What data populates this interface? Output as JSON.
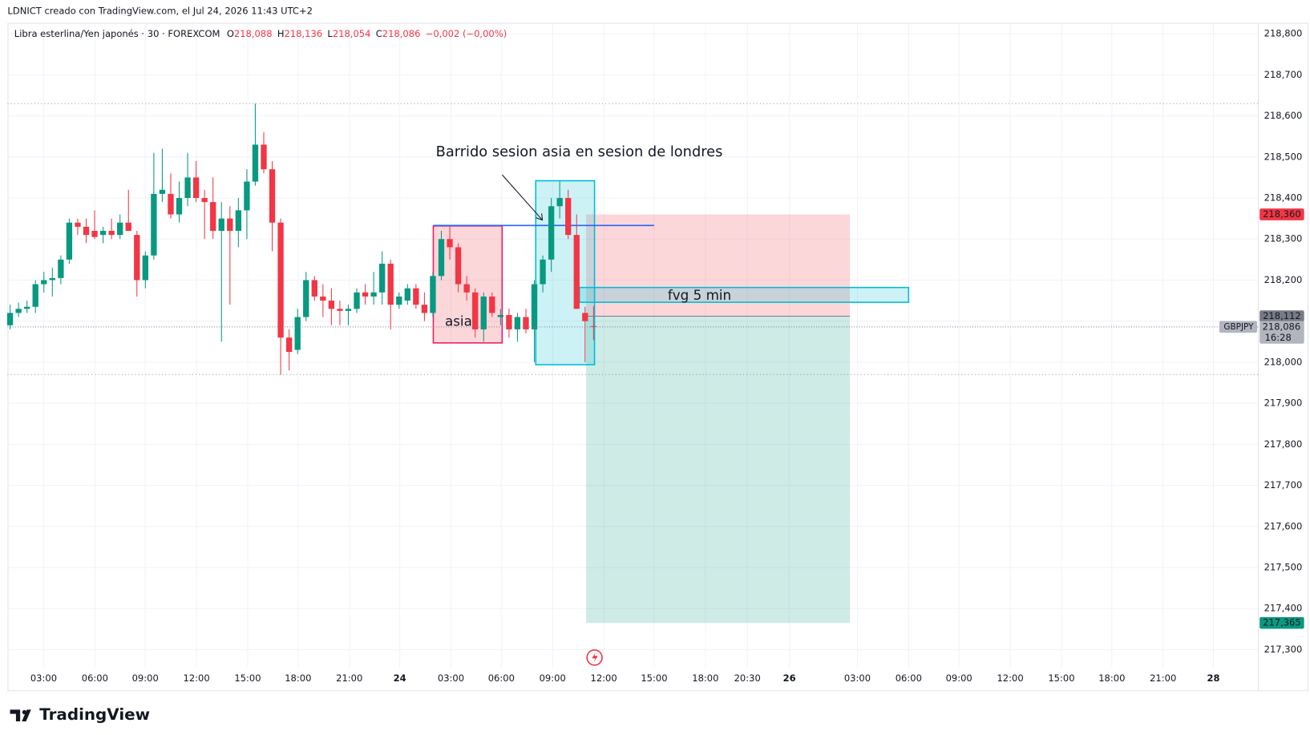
{
  "chart_data": {
    "type": "candlestick",
    "caption": "LDNICT creado con TradingView.com, el Jul 24, 2026 11:43 UTC+2",
    "symbol": "Libra esterlina/Yen japonés · 30 · FOREXCOM",
    "ohlc_legend": [
      {
        "k": "O",
        "v": "218,088"
      },
      {
        "k": "H",
        "v": "218,136"
      },
      {
        "k": "L",
        "v": "218,054"
      },
      {
        "k": "C",
        "v": "218,086"
      }
    ],
    "change": "−0,002 (−0,00%)",
    "up_color": "#089981",
    "down_color": "#f23645",
    "categories": [
      "03:00",
      "06:00",
      "09:00",
      "12:00",
      "15:00",
      "18:00",
      "21:00",
      "24",
      "03:00",
      "06:00",
      "09:00",
      "12:00",
      "15:00",
      "18:00",
      "20:30",
      "26",
      "03:00",
      "06:00",
      "09:00",
      "12:00",
      "15:00",
      "18:00",
      "21:00",
      "28"
    ],
    "ylim": [
      218.8,
      217.3
    ],
    "yticks": [
      {
        "value": 218.8,
        "label": "218,800"
      },
      {
        "value": 218.7,
        "label": "218,700"
      },
      {
        "value": 218.6,
        "label": "218,600"
      },
      {
        "value": 218.5,
        "label": "218,500"
      },
      {
        "value": 218.4,
        "label": "218,400"
      },
      {
        "value": 218.3,
        "label": "218,300"
      },
      {
        "value": 218.2,
        "label": "218,200"
      },
      {
        "value": 218.1,
        "label": "218,100"
      },
      {
        "value": 218.0,
        "label": "218,000"
      },
      {
        "value": 217.9,
        "label": "217,900"
      },
      {
        "value": 217.8,
        "label": "217,800"
      },
      {
        "value": 217.7,
        "label": "217,700"
      },
      {
        "value": 217.6,
        "label": "217,600"
      },
      {
        "value": 217.5,
        "label": "217,500"
      },
      {
        "value": 217.4,
        "label": "217,400"
      },
      {
        "value": 217.3,
        "label": "217,300"
      }
    ],
    "grid": true,
    "ohlc": [
      [
        218.09,
        218.14,
        218.08,
        218.12
      ],
      [
        218.12,
        218.145,
        218.11,
        218.13
      ],
      [
        218.13,
        218.15,
        218.12,
        218.135
      ],
      [
        218.135,
        218.2,
        218.12,
        218.19
      ],
      [
        218.19,
        218.22,
        218.17,
        218.2
      ],
      [
        218.2,
        218.23,
        218.16,
        218.205
      ],
      [
        218.205,
        218.26,
        218.19,
        218.25
      ],
      [
        218.25,
        218.35,
        218.24,
        218.34
      ],
      [
        218.34,
        218.35,
        218.31,
        218.33
      ],
      [
        218.33,
        218.35,
        218.29,
        218.31
      ],
      [
        218.32,
        218.37,
        218.3,
        218.305
      ],
      [
        218.31,
        218.33,
        218.29,
        218.32
      ],
      [
        218.32,
        218.35,
        218.3,
        218.31
      ],
      [
        218.31,
        218.36,
        218.3,
        218.34
      ],
      [
        218.34,
        218.42,
        218.32,
        218.32
      ],
      [
        218.31,
        218.32,
        218.16,
        218.2
      ],
      [
        218.2,
        218.27,
        218.18,
        218.26
      ],
      [
        218.26,
        218.51,
        218.25,
        218.41
      ],
      [
        218.41,
        218.52,
        218.39,
        218.42
      ],
      [
        218.41,
        218.46,
        218.35,
        218.36
      ],
      [
        218.36,
        218.44,
        218.34,
        218.4
      ],
      [
        218.4,
        218.51,
        218.38,
        218.45
      ],
      [
        218.45,
        218.49,
        218.39,
        218.4
      ],
      [
        218.4,
        218.42,
        218.3,
        218.39
      ],
      [
        218.39,
        218.45,
        218.3,
        218.32
      ],
      [
        218.32,
        218.39,
        218.05,
        218.35
      ],
      [
        218.35,
        218.38,
        218.14,
        218.32
      ],
      [
        218.32,
        218.4,
        218.28,
        218.37
      ],
      [
        218.37,
        218.47,
        218.3,
        218.44
      ],
      [
        218.44,
        218.63,
        218.43,
        218.53
      ],
      [
        218.53,
        218.56,
        218.46,
        218.47
      ],
      [
        218.47,
        218.49,
        218.27,
        218.34
      ],
      [
        218.34,
        218.35,
        217.97,
        218.06
      ],
      [
        218.06,
        218.08,
        217.98,
        218.025
      ],
      [
        218.03,
        218.13,
        218.02,
        218.11
      ],
      [
        218.11,
        218.22,
        218.1,
        218.2
      ],
      [
        218.2,
        218.21,
        218.15,
        218.16
      ],
      [
        218.16,
        218.19,
        218.11,
        218.15
      ],
      [
        218.15,
        218.18,
        218.09,
        218.13
      ],
      [
        218.13,
        218.15,
        218.09,
        218.125
      ],
      [
        218.125,
        218.14,
        218.09,
        218.13
      ],
      [
        218.13,
        218.18,
        218.12,
        218.17
      ],
      [
        218.17,
        218.19,
        218.14,
        218.16
      ],
      [
        218.16,
        218.22,
        218.14,
        218.17
      ],
      [
        218.17,
        218.27,
        218.14,
        218.24
      ],
      [
        218.24,
        218.25,
        218.08,
        218.14
      ],
      [
        218.14,
        218.17,
        218.13,
        218.16
      ],
      [
        218.15,
        218.19,
        218.14,
        218.18
      ],
      [
        218.18,
        218.19,
        218.13,
        218.14
      ],
      [
        218.14,
        218.17,
        218.1,
        218.12
      ],
      [
        218.12,
        218.22,
        218.11,
        218.21
      ],
      [
        218.21,
        218.32,
        218.2,
        218.3
      ],
      [
        218.3,
        218.33,
        218.25,
        218.28
      ],
      [
        218.28,
        218.29,
        218.17,
        218.19
      ],
      [
        218.19,
        218.21,
        218.15,
        218.17
      ],
      [
        218.17,
        218.18,
        218.06,
        218.08
      ],
      [
        218.08,
        218.17,
        218.05,
        218.16
      ],
      [
        218.16,
        218.17,
        218.11,
        218.12
      ],
      [
        218.11,
        218.13,
        218.09,
        218.115
      ],
      [
        218.115,
        218.13,
        218.06,
        218.08
      ],
      [
        218.08,
        218.12,
        218.05,
        218.11
      ],
      [
        218.11,
        218.13,
        218.07,
        218.08
      ],
      [
        218.08,
        218.2,
        218.0,
        218.19
      ],
      [
        218.19,
        218.26,
        218.17,
        218.25
      ],
      [
        218.25,
        218.4,
        218.22,
        218.38
      ],
      [
        218.38,
        218.44,
        218.35,
        218.4
      ],
      [
        218.4,
        218.42,
        218.3,
        218.31
      ],
      [
        218.31,
        218.36,
        218.13,
        218.13
      ],
      [
        218.12,
        218.135,
        218.0,
        218.1
      ],
      [
        218.088,
        218.136,
        218.054,
        218.086
      ]
    ],
    "levels": [
      218.63,
      217.97
    ],
    "last_price": {
      "value": 218.086,
      "label": "218,086",
      "symbol": "GBPJPY",
      "countdown": "16:28"
    },
    "position": {
      "stop": {
        "value": 218.36,
        "label": "218,360"
      },
      "entry": {
        "value": 218.112,
        "label": "218,112"
      },
      "target": {
        "value": 217.365,
        "label": "217,365"
      }
    },
    "asia_box": {
      "top": 218.332,
      "bottom": 218.047,
      "label": "asia"
    },
    "sweep_box": {
      "top": 218.442,
      "bottom": 217.994
    },
    "sweep_line": 218.333,
    "fvg_box": {
      "top": 218.182,
      "bottom": 218.146,
      "label": "fvg 5 min"
    },
    "annotation": "Barrido sesion asia en sesion de londres",
    "brand": "TradingView"
  }
}
